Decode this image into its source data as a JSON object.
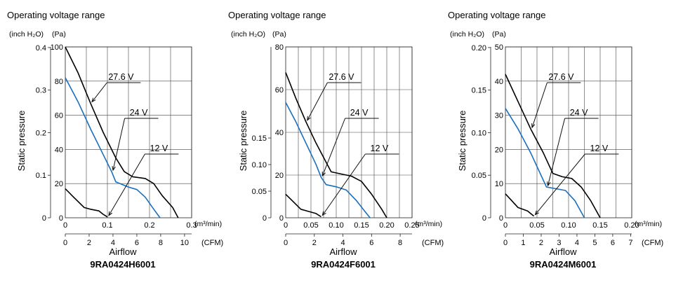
{
  "common": {
    "title": "Operating voltage range",
    "unit_inch": "(inch H₂O)",
    "unit_pa": "(Pa)",
    "ylabel": "Static pressure",
    "xlabel": "Airflow",
    "unit_m3": "(m³/min)",
    "unit_cfm": "(CFM)"
  },
  "chart_data": [
    {
      "type": "line",
      "title": "9RA0424H6001",
      "pa_ticks": [
        "0",
        "20",
        "40",
        "60",
        "80",
        "100"
      ],
      "pa_max": 100,
      "inch_ticks": [
        {
          "value": 0,
          "label": "0"
        },
        {
          "value": 0.1,
          "label": "0.1"
        },
        {
          "value": 0.2,
          "label": "0.2"
        },
        {
          "value": 0.3,
          "label": "0.3"
        },
        {
          "value": 0.4,
          "label": "0.4"
        }
      ],
      "m3_ticks": [
        {
          "value": 0,
          "label": "0"
        },
        {
          "value": 0.1,
          "label": "0.1"
        },
        {
          "value": 0.2,
          "label": "0.2"
        },
        {
          "value": 0.3,
          "label": "0.3"
        }
      ],
      "m3_max": 0.3,
      "cfm_ticks": [
        {
          "value": 0,
          "label": "0"
        },
        {
          "value": 2,
          "label": "2"
        },
        {
          "value": 4,
          "label": "4"
        },
        {
          "value": 6,
          "label": "6"
        },
        {
          "value": 8,
          "label": "8"
        },
        {
          "value": 10,
          "label": "10"
        }
      ],
      "series": [
        {
          "name": "27.6 V",
          "color": "#000000",
          "points": [
            [
              0,
              100
            ],
            [
              0.03,
              85
            ],
            [
              0.06,
              67
            ],
            [
              0.09,
              50
            ],
            [
              0.12,
              35
            ],
            [
              0.14,
              27
            ],
            [
              0.16,
              24
            ],
            [
              0.19,
              23
            ],
            [
              0.21,
              20
            ],
            [
              0.23,
              13
            ],
            [
              0.255,
              6
            ],
            [
              0.268,
              0
            ]
          ]
        },
        {
          "name": "24 V",
          "color": "#1a6fbd",
          "points": [
            [
              0,
              82
            ],
            [
              0.03,
              68
            ],
            [
              0.06,
              52
            ],
            [
              0.09,
              37
            ],
            [
              0.11,
              27
            ],
            [
              0.12,
              21
            ],
            [
              0.15,
              18
            ],
            [
              0.17,
              16.5
            ],
            [
              0.19,
              12
            ],
            [
              0.21,
              5
            ],
            [
              0.225,
              0
            ]
          ]
        },
        {
          "name": "12 V",
          "color": "#000000",
          "points": [
            [
              0,
              17
            ],
            [
              0.02,
              12
            ],
            [
              0.045,
              6
            ],
            [
              0.06,
              5
            ],
            [
              0.08,
              4
            ],
            [
              0.09,
              2
            ],
            [
              0.1,
              0.5
            ]
          ]
        }
      ]
    },
    {
      "type": "line",
      "title": "9RA0424F6001",
      "pa_ticks": [
        "0",
        "20",
        "40",
        "60",
        "80"
      ],
      "pa_max": 80,
      "inch_ticks": [
        {
          "value": 0,
          "label": "0"
        },
        {
          "value": 0.05,
          "label": "0.05"
        },
        {
          "value": 0.1,
          "label": "0.10"
        },
        {
          "value": 0.15,
          "label": "0.15"
        }
      ],
      "m3_ticks": [
        {
          "value": 0,
          "label": "0"
        },
        {
          "value": 0.05,
          "label": "0.05"
        },
        {
          "value": 0.1,
          "label": "0.10"
        },
        {
          "value": 0.15,
          "label": "0.15"
        },
        {
          "value": 0.2,
          "label": "0.20"
        },
        {
          "value": 0.25,
          "label": "0.25"
        }
      ],
      "m3_max": 0.25,
      "cfm_ticks": [
        {
          "value": 0,
          "label": "0"
        },
        {
          "value": 2,
          "label": "2"
        },
        {
          "value": 4,
          "label": "4"
        },
        {
          "value": 6,
          "label": "6"
        },
        {
          "value": 8,
          "label": "8"
        }
      ],
      "series": [
        {
          "name": "27.6 V",
          "color": "#000000",
          "points": [
            [
              0,
              68
            ],
            [
              0.02,
              56
            ],
            [
              0.04,
              45
            ],
            [
              0.06,
              35
            ],
            [
              0.08,
              26
            ],
            [
              0.09,
              21.5
            ],
            [
              0.11,
              20.5
            ],
            [
              0.13,
              19.5
            ],
            [
              0.15,
              17
            ],
            [
              0.17,
              11
            ],
            [
              0.19,
              4
            ],
            [
              0.2,
              0
            ]
          ]
        },
        {
          "name": "24 V",
          "color": "#1a6fbd",
          "points": [
            [
              0,
              54
            ],
            [
              0.02,
              45
            ],
            [
              0.04,
              35
            ],
            [
              0.06,
              25
            ],
            [
              0.07,
              19
            ],
            [
              0.08,
              15.5
            ],
            [
              0.1,
              14.5
            ],
            [
              0.12,
              13
            ],
            [
              0.14,
              8
            ],
            [
              0.16,
              2
            ],
            [
              0.167,
              0
            ]
          ]
        },
        {
          "name": "12 V",
          "color": "#000000",
          "points": [
            [
              0,
              11
            ],
            [
              0.015,
              7.5
            ],
            [
              0.03,
              4
            ],
            [
              0.045,
              3
            ],
            [
              0.06,
              2
            ],
            [
              0.07,
              0.5
            ]
          ]
        }
      ]
    },
    {
      "type": "line",
      "title": "9RA0424M6001",
      "pa_ticks": [
        "0",
        "10",
        "20",
        "30",
        "40",
        "50"
      ],
      "pa_max": 50,
      "inch_ticks": [
        {
          "value": 0,
          "label": "0"
        },
        {
          "value": 0.05,
          "label": "0.05"
        },
        {
          "value": 0.1,
          "label": "0.10"
        },
        {
          "value": 0.15,
          "label": "0.15"
        },
        {
          "value": 0.2,
          "label": "0.20"
        }
      ],
      "m3_ticks": [
        {
          "value": 0,
          "label": "0"
        },
        {
          "value": 0.05,
          "label": "0.05"
        },
        {
          "value": 0.1,
          "label": "0.10"
        },
        {
          "value": 0.15,
          "label": "0.15"
        },
        {
          "value": 0.2,
          "label": "0.20"
        }
      ],
      "m3_max": 0.2,
      "cfm_ticks": [
        {
          "value": 0,
          "label": "0"
        },
        {
          "value": 1,
          "label": "1"
        },
        {
          "value": 2,
          "label": "2"
        },
        {
          "value": 3,
          "label": "3"
        },
        {
          "value": 4,
          "label": "4"
        },
        {
          "value": 5,
          "label": "5"
        },
        {
          "value": 6,
          "label": "6"
        },
        {
          "value": 7,
          "label": "7"
        }
      ],
      "series": [
        {
          "name": "27.6 V",
          "color": "#000000",
          "points": [
            [
              0,
              42
            ],
            [
              0.02,
              34
            ],
            [
              0.04,
              26
            ],
            [
              0.06,
              19
            ],
            [
              0.075,
              13
            ],
            [
              0.09,
              12
            ],
            [
              0.105,
              11.5
            ],
            [
              0.12,
              9
            ],
            [
              0.135,
              5
            ],
            [
              0.15,
              0
            ]
          ]
        },
        {
          "name": "24 V",
          "color": "#1a6fbd",
          "points": [
            [
              0,
              32
            ],
            [
              0.02,
              26
            ],
            [
              0.04,
              19
            ],
            [
              0.055,
              13
            ],
            [
              0.065,
              9
            ],
            [
              0.08,
              8.5
            ],
            [
              0.095,
              8
            ],
            [
              0.11,
              5
            ],
            [
              0.125,
              0
            ]
          ]
        },
        {
          "name": "12 V",
          "color": "#000000",
          "points": [
            [
              0,
              7
            ],
            [
              0.01,
              5
            ],
            [
              0.02,
              3
            ],
            [
              0.035,
              2
            ],
            [
              0.045,
              0.5
            ]
          ]
        }
      ]
    }
  ]
}
